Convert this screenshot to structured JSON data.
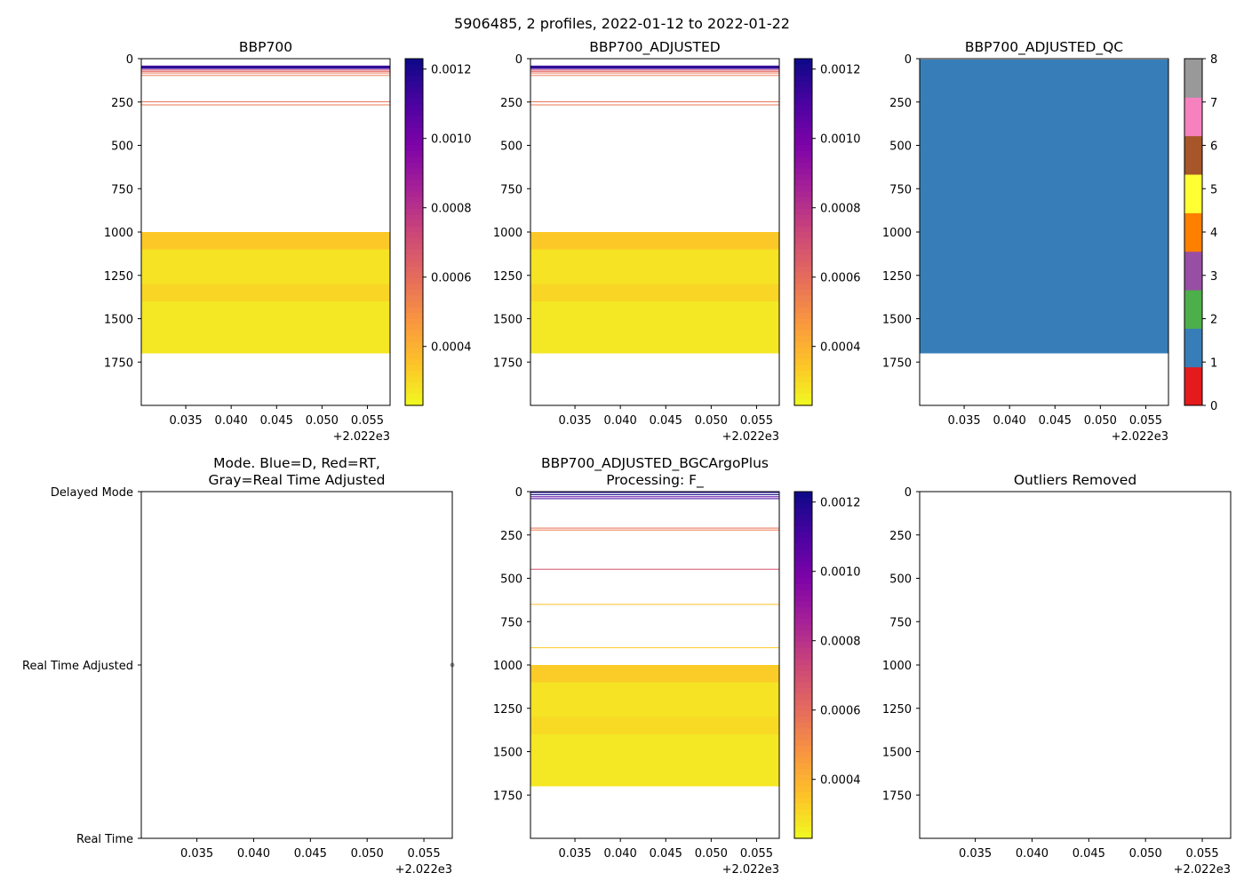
{
  "figure": {
    "title": "5906485, 2 profiles, 2022-01-12 to 2022-01-22",
    "background": "#ffffff"
  },
  "chart_data": [
    {
      "id": "bbp700",
      "type": "heatmap",
      "title": [
        "BBP700"
      ],
      "xticks": [
        "0.035",
        "0.040",
        "0.045",
        "0.050",
        "0.055"
      ],
      "xtick_values": [
        0.035,
        0.04,
        0.045,
        0.05,
        0.055
      ],
      "x_offset_label": "+2.022e3",
      "xlim": [
        0.0301,
        0.0575
      ],
      "ylim": [
        2000,
        0
      ],
      "yticks": [
        0,
        250,
        500,
        750,
        1000,
        1250,
        1500,
        1750
      ],
      "colormap": "plasma_r",
      "clim": [
        0.00023,
        0.00123
      ],
      "colorbar_ticks": [
        "0.0012",
        "0.0010",
        "0.0008",
        "0.0006",
        "0.0004"
      ],
      "colorbar_tick_values": [
        0.0012,
        0.001,
        0.0008,
        0.0006,
        0.0004
      ],
      "bands": [
        {
          "y0": 40,
          "y1": 44,
          "value": 0.00108
        },
        {
          "y0": 44,
          "y1": 49,
          "value": 0.00123
        },
        {
          "y0": 49,
          "y1": 54,
          "value": 0.00118
        },
        {
          "y0": 54,
          "y1": 59,
          "value": 0.00112
        },
        {
          "y0": 63,
          "y1": 66,
          "value": 0.00072
        },
        {
          "y0": 71,
          "y1": 74,
          "value": 0.0006
        },
        {
          "y0": 80,
          "y1": 83,
          "value": 0.00058
        },
        {
          "y0": 94,
          "y1": 97,
          "value": 0.00056
        },
        {
          "y0": 246,
          "y1": 249,
          "value": 0.00058
        },
        {
          "y0": 264,
          "y1": 267,
          "value": 0.00056
        },
        {
          "y0": 1000,
          "y1": 1100,
          "value": 0.00034
        },
        {
          "y0": 1100,
          "y1": 1300,
          "value": 0.00028
        },
        {
          "y0": 1300,
          "y1": 1400,
          "value": 0.00031
        },
        {
          "y0": 1400,
          "y1": 1700,
          "value": 0.00027
        }
      ]
    },
    {
      "id": "bbp700-adjusted",
      "type": "heatmap",
      "title": [
        "BBP700_ADJUSTED"
      ],
      "xticks": [
        "0.035",
        "0.040",
        "0.045",
        "0.050",
        "0.055"
      ],
      "xtick_values": [
        0.035,
        0.04,
        0.045,
        0.05,
        0.055
      ],
      "x_offset_label": "+2.022e3",
      "xlim": [
        0.0301,
        0.0575
      ],
      "ylim": [
        2000,
        0
      ],
      "yticks": [
        0,
        250,
        500,
        750,
        1000,
        1250,
        1500,
        1750
      ],
      "colormap": "plasma_r",
      "clim": [
        0.00023,
        0.00123
      ],
      "colorbar_ticks": [
        "0.0012",
        "0.0010",
        "0.0008",
        "0.0006",
        "0.0004"
      ],
      "colorbar_tick_values": [
        0.0012,
        0.001,
        0.0008,
        0.0006,
        0.0004
      ],
      "bands": [
        {
          "y0": 40,
          "y1": 44,
          "value": 0.00108
        },
        {
          "y0": 44,
          "y1": 49,
          "value": 0.00123
        },
        {
          "y0": 49,
          "y1": 54,
          "value": 0.00118
        },
        {
          "y0": 54,
          "y1": 59,
          "value": 0.00112
        },
        {
          "y0": 63,
          "y1": 66,
          "value": 0.00072
        },
        {
          "y0": 71,
          "y1": 74,
          "value": 0.0006
        },
        {
          "y0": 80,
          "y1": 83,
          "value": 0.00058
        },
        {
          "y0": 94,
          "y1": 97,
          "value": 0.00056
        },
        {
          "y0": 246,
          "y1": 249,
          "value": 0.00058
        },
        {
          "y0": 264,
          "y1": 267,
          "value": 0.00056
        },
        {
          "y0": 1000,
          "y1": 1100,
          "value": 0.00034
        },
        {
          "y0": 1100,
          "y1": 1300,
          "value": 0.00028
        },
        {
          "y0": 1300,
          "y1": 1400,
          "value": 0.00031
        },
        {
          "y0": 1400,
          "y1": 1700,
          "value": 0.00027
        }
      ]
    },
    {
      "id": "bbp700-adjusted-qc",
      "type": "heatmap",
      "title": [
        "BBP700_ADJUSTED_QC"
      ],
      "xticks": [
        "0.035",
        "0.040",
        "0.045",
        "0.050",
        "0.055"
      ],
      "xtick_values": [
        0.035,
        0.04,
        0.045,
        0.05,
        0.055
      ],
      "x_offset_label": "+2.022e3",
      "xlim": [
        0.0301,
        0.0575
      ],
      "ylim": [
        2000,
        0
      ],
      "yticks": [
        0,
        250,
        500,
        750,
        1000,
        1250,
        1500,
        1750
      ],
      "colormap": "qc_categorical",
      "qc_colors": [
        "#e41a1c",
        "#377eb8",
        "#4daf4a",
        "#984ea3",
        "#ff7f00",
        "#ffff33",
        "#a65628",
        "#f781bf",
        "#999999"
      ],
      "colorbar_ticks": [
        "0",
        "1",
        "2",
        "3",
        "4",
        "5",
        "6",
        "7",
        "8"
      ],
      "colorbar_tick_values": [
        0,
        1,
        2,
        3,
        4,
        5,
        6,
        7,
        8
      ],
      "bands": [
        {
          "y0": 5,
          "y1": 1700,
          "value": 1
        }
      ]
    },
    {
      "id": "mode",
      "type": "scatter",
      "title": [
        "Mode. Blue=D, Red=RT,",
        "Gray=Real Time Adjusted"
      ],
      "xticks": [
        "0.035",
        "0.040",
        "0.045",
        "0.050",
        "0.055"
      ],
      "xtick_values": [
        0.035,
        0.04,
        0.045,
        0.05,
        0.055
      ],
      "x_offset_label": "+2.022e3",
      "xlim": [
        0.0301,
        0.0575
      ],
      "ylim": [
        0,
        2
      ],
      "ytick_labels": [
        "Delayed Mode",
        "Real Time Adjusted",
        "Real Time"
      ],
      "ytick_values": [
        0,
        1,
        2
      ],
      "points": [
        {
          "x": 0.0575,
          "y": 1,
          "color": "#999999"
        }
      ]
    },
    {
      "id": "bgcargoplus",
      "type": "heatmap",
      "title": [
        "BBP700_ADJUSTED_BGCArgoPlus",
        "Processing: F_"
      ],
      "xticks": [
        "0.035",
        "0.040",
        "0.045",
        "0.050",
        "0.055"
      ],
      "xtick_values": [
        0.035,
        0.04,
        0.045,
        0.05,
        0.055
      ],
      "x_offset_label": "+2.022e3",
      "xlim": [
        0.0301,
        0.0575
      ],
      "ylim": [
        2000,
        0
      ],
      "yticks": [
        0,
        250,
        500,
        750,
        1000,
        1250,
        1500,
        1750
      ],
      "colormap": "plasma_r",
      "clim": [
        0.00023,
        0.00123
      ],
      "colorbar_ticks": [
        "0.0012",
        "0.0010",
        "0.0008",
        "0.0006",
        "0.0004"
      ],
      "colorbar_tick_values": [
        0.0012,
        0.001,
        0.0008,
        0.0006,
        0.0004
      ],
      "bands": [
        {
          "y0": 3,
          "y1": 7,
          "value": 0.00118
        },
        {
          "y0": 15,
          "y1": 19,
          "value": 0.00123
        },
        {
          "y0": 27,
          "y1": 31,
          "value": 0.00105
        },
        {
          "y0": 38,
          "y1": 42,
          "value": 0.00112
        },
        {
          "y0": 208,
          "y1": 212,
          "value": 0.00058
        },
        {
          "y0": 219,
          "y1": 223,
          "value": 0.00055
        },
        {
          "y0": 445,
          "y1": 449,
          "value": 0.00068
        },
        {
          "y0": 648,
          "y1": 652,
          "value": 0.00036
        },
        {
          "y0": 898,
          "y1": 902,
          "value": 0.00034
        },
        {
          "y0": 1000,
          "y1": 1100,
          "value": 0.00033
        },
        {
          "y0": 1100,
          "y1": 1300,
          "value": 0.00028
        },
        {
          "y0": 1300,
          "y1": 1400,
          "value": 0.0003
        },
        {
          "y0": 1400,
          "y1": 1700,
          "value": 0.00027
        }
      ]
    },
    {
      "id": "outliers-removed",
      "type": "scatter",
      "title": [
        "Outliers Removed"
      ],
      "xticks": [
        "0.035",
        "0.040",
        "0.045",
        "0.050",
        "0.055"
      ],
      "xtick_values": [
        0.035,
        0.04,
        0.045,
        0.05,
        0.055
      ],
      "x_offset_label": "+2.022e3",
      "xlim": [
        0.0301,
        0.0575
      ],
      "ylim": [
        2000,
        0
      ],
      "yticks": [
        0,
        250,
        500,
        750,
        1000,
        1250,
        1500,
        1750
      ],
      "points": []
    }
  ]
}
